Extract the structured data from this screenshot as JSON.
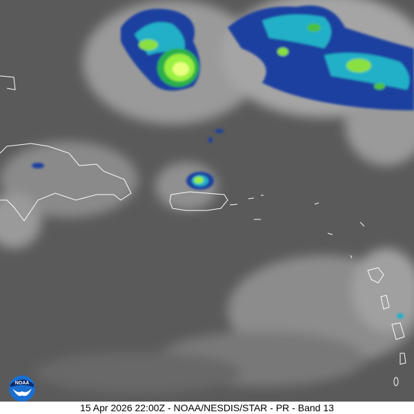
{
  "caption": "15 Apr 2026 22:00Z - NOAA/NESDIS/STAR - PR - Band 13",
  "logo": {
    "text": "NOAA"
  },
  "colors": {
    "background_ir": "#5a5a5a",
    "cold_cloud_blue": "#1a3fa0",
    "cold_cloud_green": "#6fe83a",
    "coastline": "#ffffff"
  }
}
